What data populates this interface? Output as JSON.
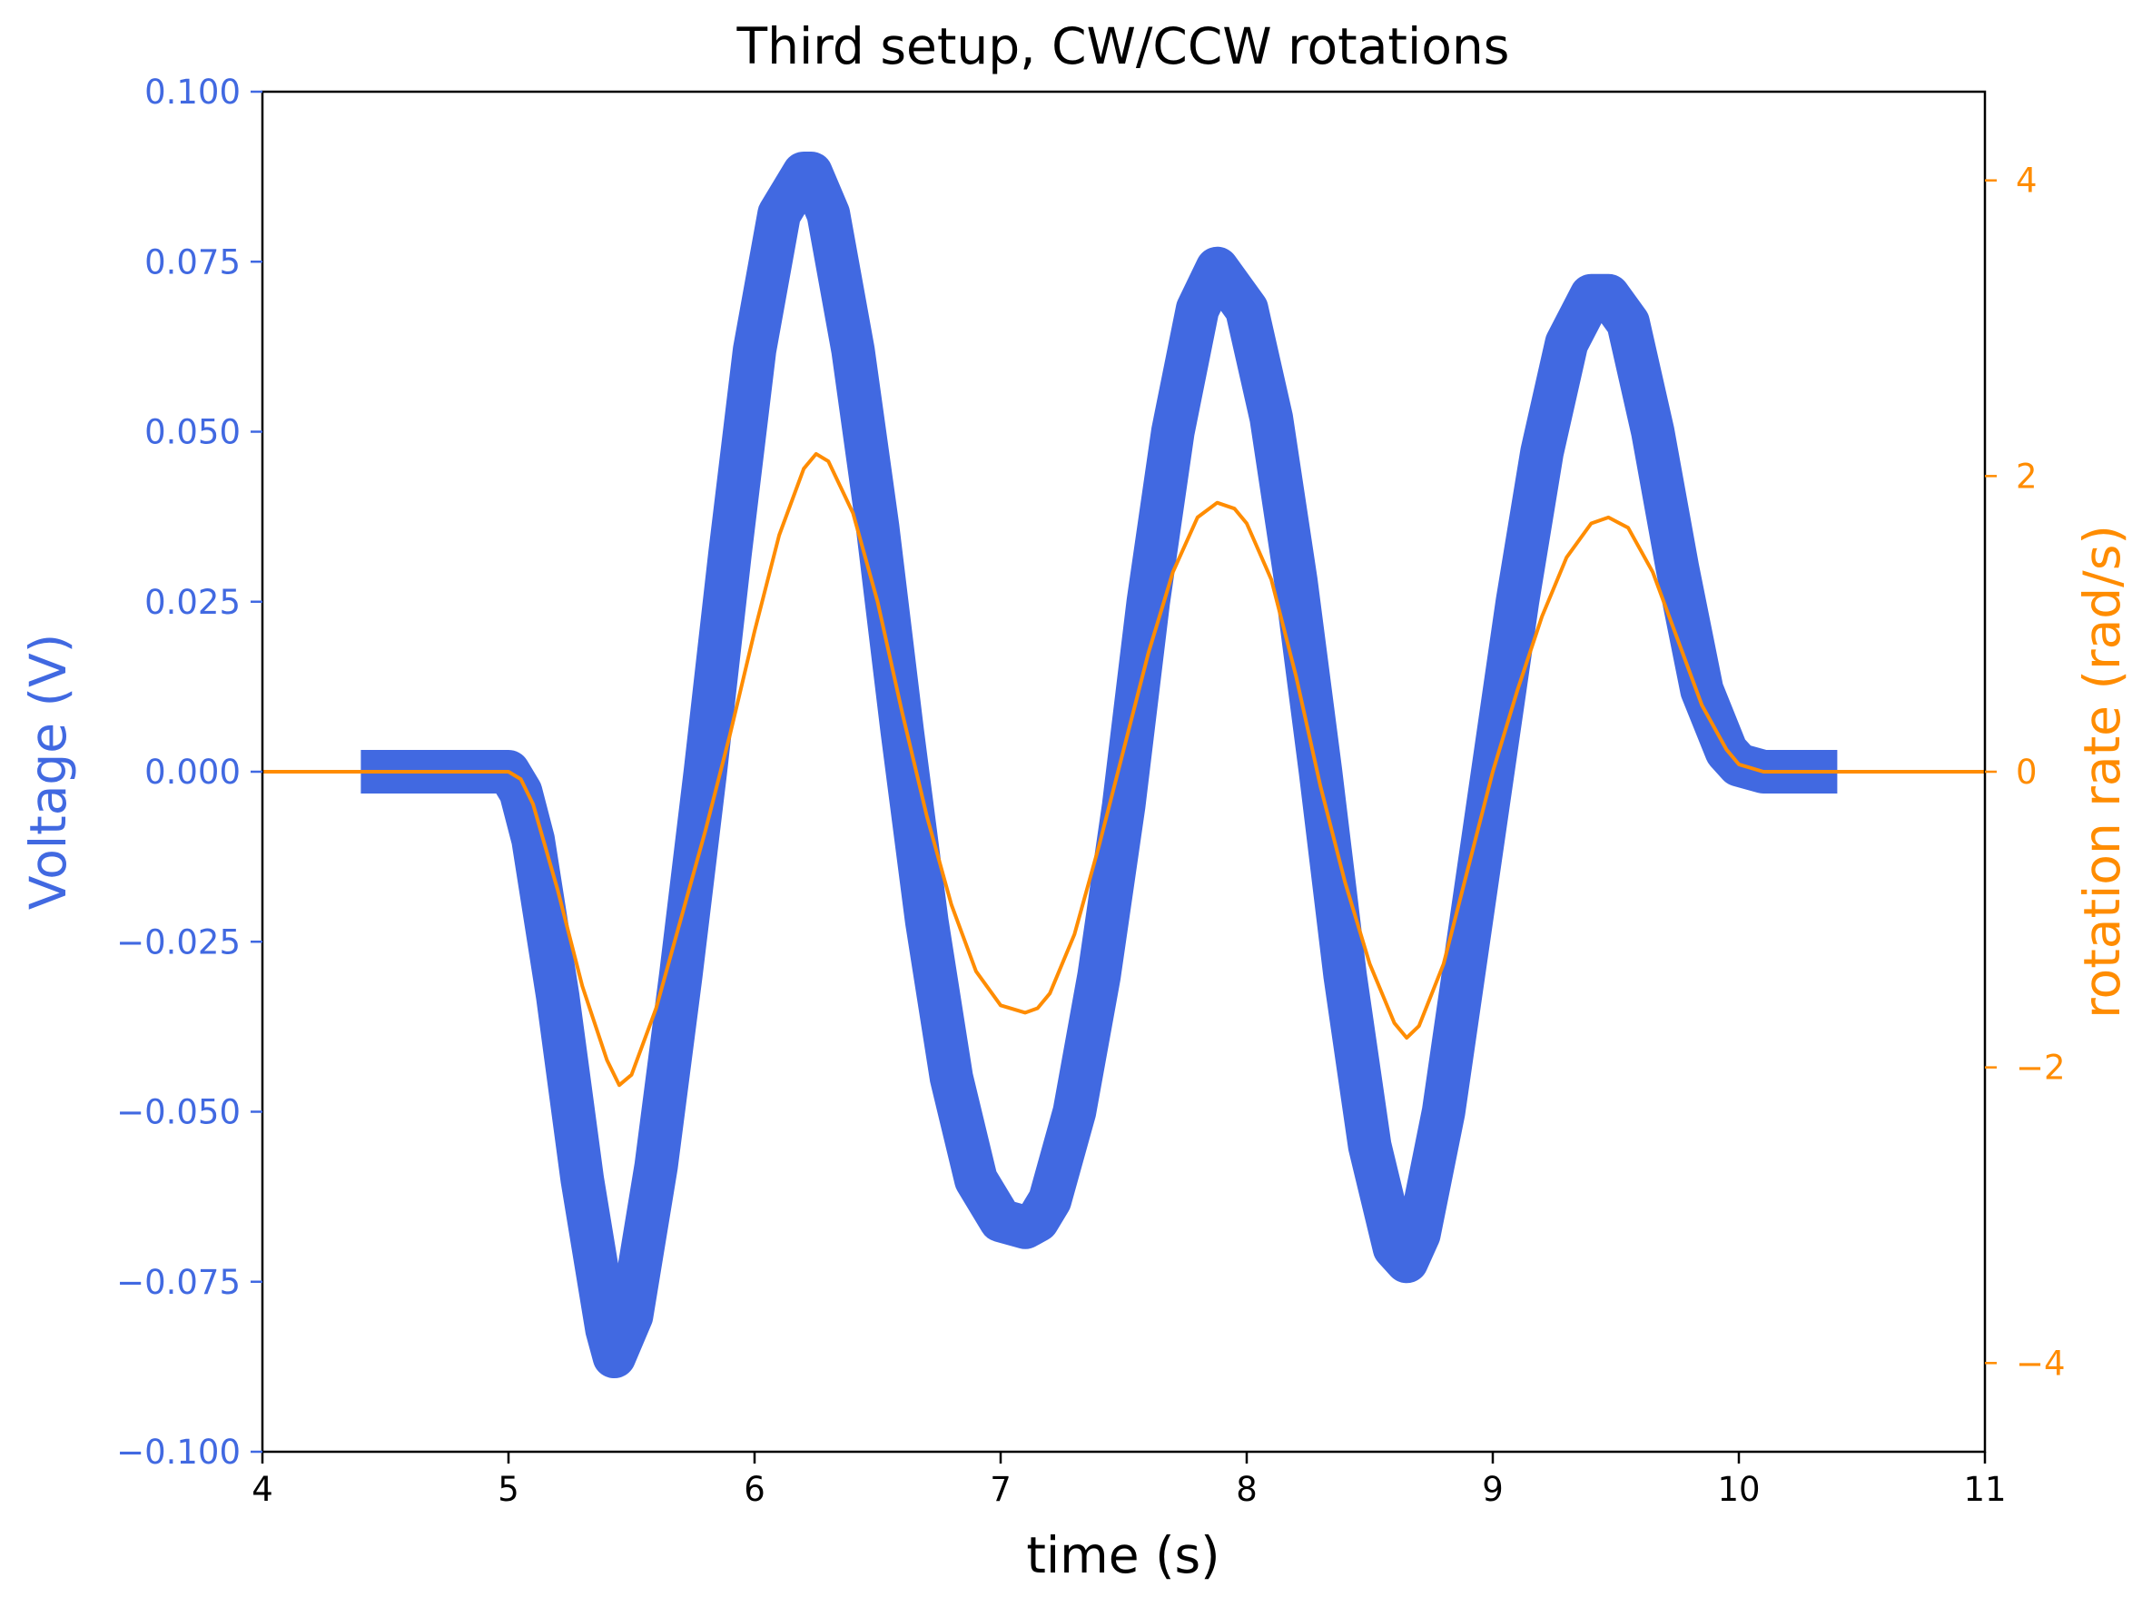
{
  "chart_data": {
    "type": "line",
    "title": "Third setup, CW/CCW rotations",
    "xlabel": "time (s)",
    "xlim": [
      4,
      11
    ],
    "x_ticks": [
      4,
      5,
      6,
      7,
      8,
      9,
      10,
      11
    ],
    "x_tick_labels": [
      "4",
      "5",
      "6",
      "7",
      "8",
      "9",
      "10",
      "11"
    ],
    "colors": {
      "voltage": "#4169e1",
      "rotation": "#ff8c00",
      "axes": "#000000"
    },
    "axes": {
      "left": {
        "label": "Voltage (V)",
        "ylim": [
          -0.1,
          0.1
        ],
        "ticks": [
          -0.1,
          -0.075,
          -0.05,
          -0.025,
          0.0,
          0.025,
          0.05,
          0.075,
          0.1
        ],
        "tick_labels": [
          "−0.100",
          "−0.075",
          "−0.050",
          "−0.025",
          "0.000",
          "0.025",
          "0.050",
          "0.075",
          "0.100"
        ]
      },
      "right": {
        "label": "rotation rate (rad/s)",
        "ylim": [
          -4.6,
          4.6
        ],
        "ticks": [
          -4,
          -2,
          0,
          2,
          4
        ],
        "tick_labels": [
          "−4",
          "−2",
          "0",
          "2",
          "4"
        ]
      }
    },
    "series": [
      {
        "name": "Voltage",
        "axis": "left",
        "style": "thick-noisy-band",
        "band_halfwidth": 0.0032,
        "x": [
          4.4,
          4.8,
          5.0,
          5.05,
          5.1,
          5.2,
          5.3,
          5.4,
          5.43,
          5.5,
          5.6,
          5.7,
          5.8,
          5.9,
          6.0,
          6.1,
          6.2,
          6.23,
          6.3,
          6.4,
          6.5,
          6.6,
          6.7,
          6.8,
          6.9,
          7.0,
          7.1,
          7.15,
          7.2,
          7.3,
          7.4,
          7.5,
          7.6,
          7.7,
          7.8,
          7.88,
          8.0,
          8.1,
          8.2,
          8.3,
          8.4,
          8.5,
          8.6,
          8.65,
          8.7,
          8.8,
          8.9,
          9.0,
          9.1,
          9.2,
          9.3,
          9.4,
          9.47,
          9.55,
          9.65,
          9.75,
          9.85,
          9.95,
          10.0,
          10.1,
          10.4
        ],
        "y": [
          0.0,
          0.0,
          0.0,
          -0.003,
          -0.01,
          -0.033,
          -0.06,
          -0.082,
          -0.086,
          -0.08,
          -0.058,
          -0.03,
          0.0,
          0.032,
          0.062,
          0.082,
          0.088,
          0.088,
          0.082,
          0.062,
          0.036,
          0.006,
          -0.022,
          -0.045,
          -0.06,
          -0.066,
          -0.067,
          -0.066,
          -0.063,
          -0.05,
          -0.03,
          -0.005,
          0.025,
          0.05,
          0.068,
          0.074,
          0.068,
          0.052,
          0.028,
          0.0,
          -0.03,
          -0.055,
          -0.07,
          -0.072,
          -0.068,
          -0.05,
          -0.025,
          0.0,
          0.025,
          0.047,
          0.063,
          0.07,
          0.07,
          0.066,
          0.05,
          0.03,
          0.012,
          0.003,
          0.001,
          0.0,
          0.0
        ]
      },
      {
        "name": "rotation rate",
        "axis": "right",
        "style": "line",
        "x": [
          4.0,
          4.5,
          5.0,
          5.05,
          5.1,
          5.2,
          5.3,
          5.4,
          5.45,
          5.5,
          5.6,
          5.7,
          5.8,
          5.9,
          6.0,
          6.1,
          6.2,
          6.25,
          6.3,
          6.4,
          6.5,
          6.6,
          6.7,
          6.8,
          6.9,
          7.0,
          7.1,
          7.15,
          7.2,
          7.3,
          7.4,
          7.5,
          7.6,
          7.7,
          7.8,
          7.88,
          7.95,
          8.0,
          8.1,
          8.2,
          8.3,
          8.4,
          8.5,
          8.6,
          8.65,
          8.7,
          8.8,
          8.9,
          9.0,
          9.1,
          9.2,
          9.3,
          9.4,
          9.47,
          9.55,
          9.65,
          9.75,
          9.85,
          9.95,
          10.0,
          10.1,
          10.5,
          11.0
        ],
        "y": [
          0.0,
          0.0,
          0.0,
          -0.05,
          -0.22,
          -0.8,
          -1.45,
          -1.95,
          -2.12,
          -2.05,
          -1.6,
          -1.0,
          -0.4,
          0.25,
          0.95,
          1.6,
          2.05,
          2.15,
          2.1,
          1.75,
          1.15,
          0.4,
          -0.3,
          -0.9,
          -1.35,
          -1.58,
          -1.63,
          -1.6,
          -1.5,
          -1.1,
          -0.5,
          0.15,
          0.8,
          1.35,
          1.72,
          1.82,
          1.78,
          1.68,
          1.3,
          0.65,
          -0.1,
          -0.75,
          -1.3,
          -1.7,
          -1.8,
          -1.72,
          -1.3,
          -0.65,
          0.0,
          0.55,
          1.05,
          1.45,
          1.68,
          1.72,
          1.65,
          1.35,
          0.9,
          0.45,
          0.15,
          0.05,
          0.0,
          0.0,
          0.0
        ]
      }
    ]
  }
}
